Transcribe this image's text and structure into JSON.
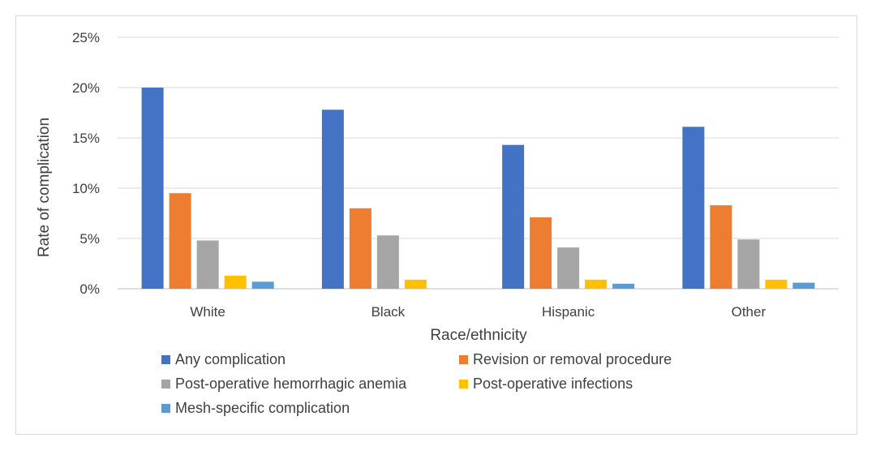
{
  "chart_data": {
    "type": "bar",
    "title": "",
    "xlabel": "Race/ethnicity",
    "ylabel": "Rate of complication",
    "categories": [
      "White",
      "Black",
      "Hispanic",
      "Other"
    ],
    "ylim": [
      0,
      25
    ],
    "yticks": [
      0,
      5,
      10,
      15,
      20,
      25
    ],
    "ytick_labels": [
      "0%",
      "5%",
      "10%",
      "15%",
      "20%",
      "25%"
    ],
    "grid": true,
    "legend_position": "bottom",
    "series": [
      {
        "name": "Any complication",
        "color": "#4472C4",
        "values": [
          20.0,
          17.8,
          14.3,
          16.1
        ]
      },
      {
        "name": "Revision or removal procedure",
        "color": "#ED7D31",
        "values": [
          9.5,
          8.0,
          7.1,
          8.3
        ]
      },
      {
        "name": "Post-operative hemorrhagic anemia",
        "color": "#A5A5A5",
        "values": [
          4.8,
          5.3,
          4.1,
          4.9
        ]
      },
      {
        "name": "Post-operative infections",
        "color": "#FFC000",
        "values": [
          1.3,
          0.9,
          0.9,
          0.9
        ]
      },
      {
        "name": "Mesh-specific complication",
        "color": "#5B9BD5",
        "values": [
          0.7,
          0.0,
          0.5,
          0.6
        ]
      }
    ]
  }
}
